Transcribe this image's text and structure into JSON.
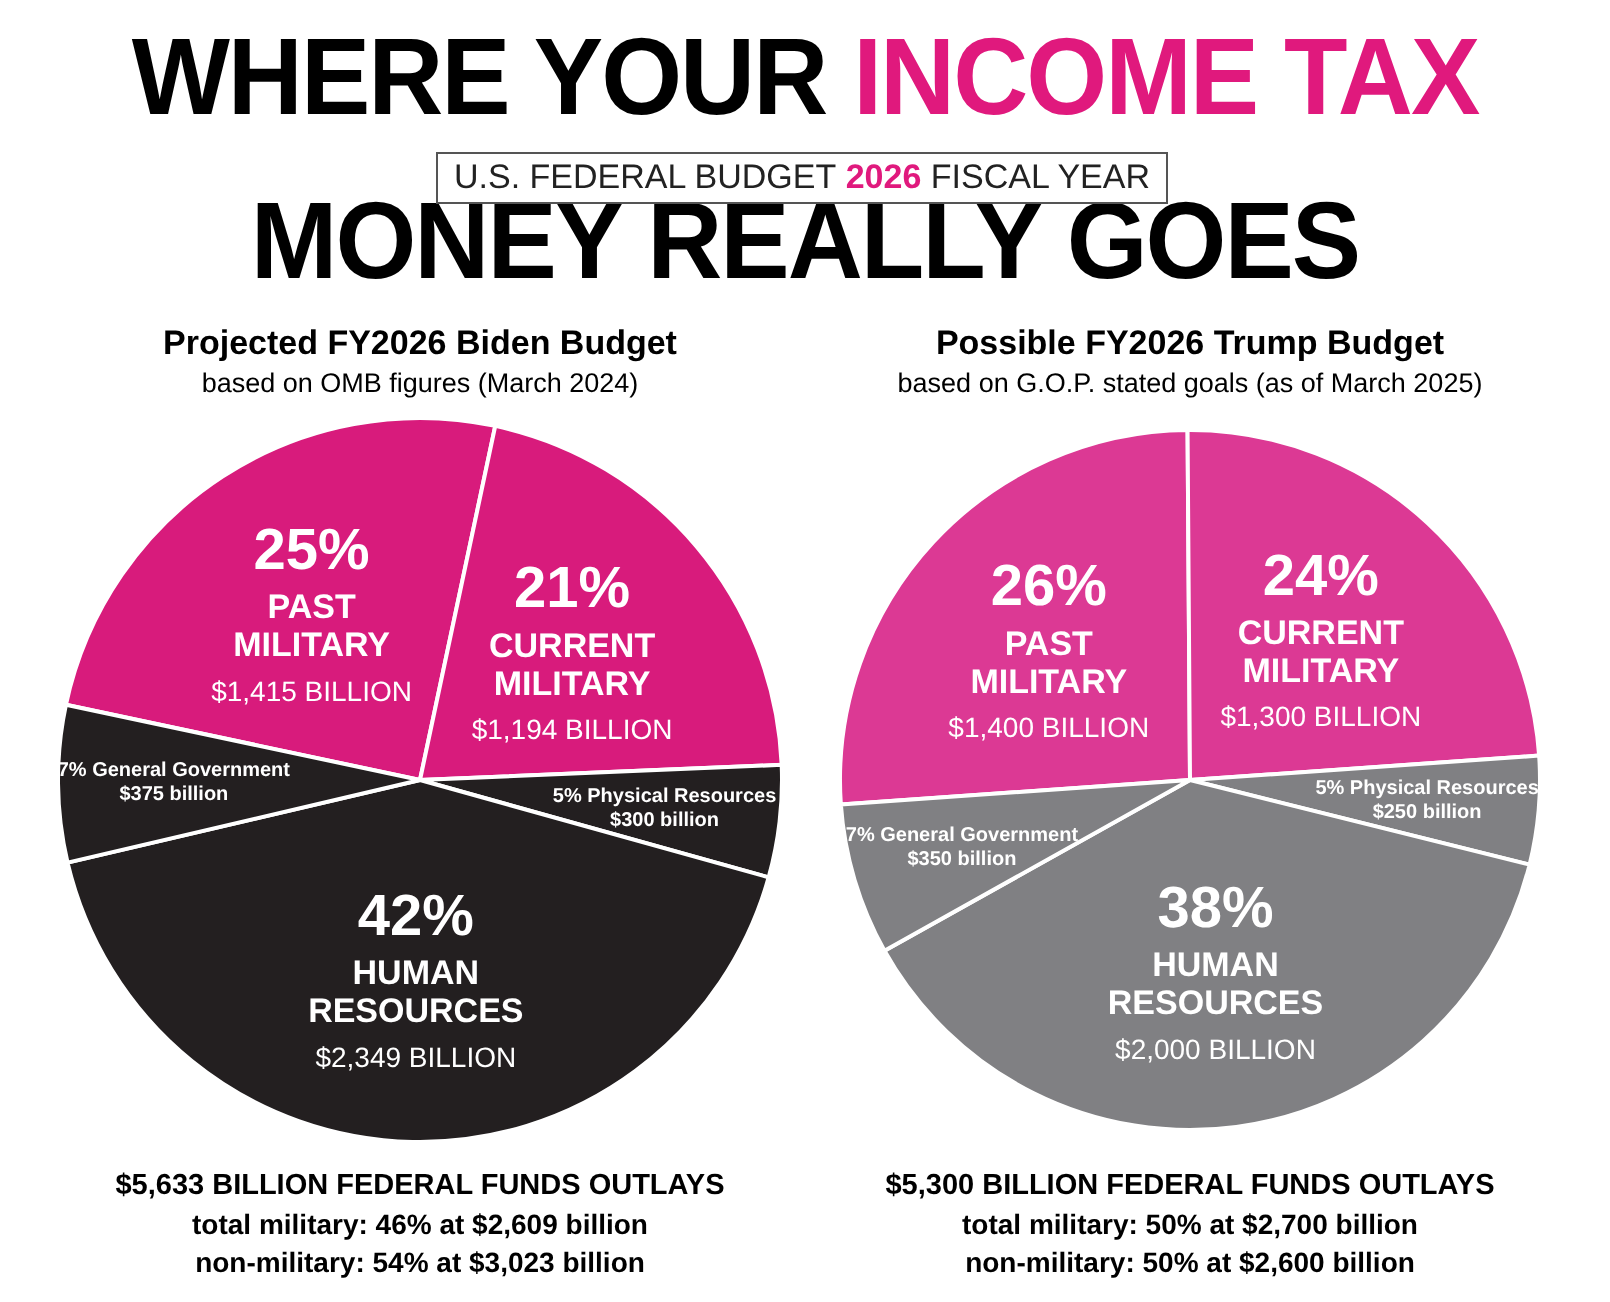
{
  "chart_data": [
    {
      "type": "other",
      "title": "WHERE YOUR INCOME TAX\nMONEY REALLY GOES",
      "subtitle": "U.S. FEDERAL BUDGET 2026 FISCAL YEAR"
    },
    {
      "type": "pie",
      "title": "Projected FY2026 Biden Budget",
      "subtitle": "based on OMB figures (March 2024)",
      "categories": [
        "PAST MILITARY",
        "CURRENT MILITARY",
        "Physical Resources",
        "HUMAN RESOURCES",
        "General Government"
      ],
      "values": [
        25,
        21,
        5,
        42,
        7
      ],
      "colors": [
        "#d81b7c",
        "#d81b7c",
        "#231f20",
        "#231f20",
        "#231f20"
      ],
      "value_labels": [
        "25%",
        "21%",
        "5%",
        "42%",
        "7%"
      ],
      "annotations": [
        {
          "text": "$1,415 BILLION",
          "x": "PAST MILITARY"
        },
        {
          "text": "$1,194 BILLION",
          "x": "CURRENT MILITARY"
        },
        {
          "text": "$300 billion",
          "x": "Physical Resources"
        },
        {
          "text": "$2,349 BILLION",
          "x": "HUMAN RESOURCES"
        },
        {
          "text": "$375 billion",
          "x": "General Government"
        },
        "$5,633 BILLION FEDERAL FUNDS OUTLAYS",
        "total military: 46% at $2,609 billion",
        "non-military: 54% at $3,023 billion"
      ]
    },
    {
      "type": "pie",
      "title": "Possible FY2026 Trump Budget",
      "subtitle": "based on G.O.P. stated goals (as of March 2025)",
      "categories": [
        "PAST MILITARY",
        "CURRENT MILITARY",
        "Physical Resources",
        "HUMAN RESOURCES",
        "General Government"
      ],
      "values": [
        26,
        24,
        5,
        38,
        7
      ],
      "colors": [
        "#dc3994",
        "#dc3994",
        "#808083",
        "#808083",
        "#808083"
      ],
      "value_labels": [
        "26%",
        "24%",
        "5%",
        "38%",
        "7%"
      ],
      "annotations": [
        {
          "text": "$1,400 BILLION",
          "x": "PAST MILITARY"
        },
        {
          "text": "$1,300 BILLION",
          "x": "CURRENT MILITARY"
        },
        {
          "text": "$250 billion",
          "x": "Physical Resources"
        },
        {
          "text": "$2,000 BILLION",
          "x": "HUMAN RESOURCES"
        },
        {
          "text": "$350 billion",
          "x": "General Government"
        },
        "$5,300 BILLION FEDERAL FUNDS OUTLAYS",
        "total military: 50% at $2,700 billion",
        "non-military: 50% at $2,600 billion"
      ]
    }
  ]
}
